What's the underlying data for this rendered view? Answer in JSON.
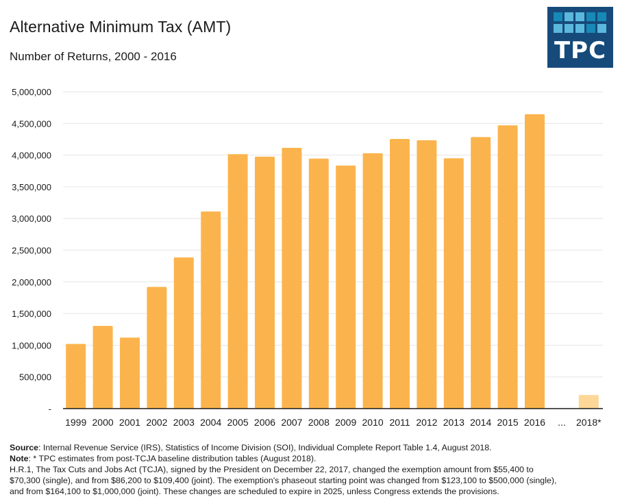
{
  "header": {
    "title": "Alternative Minimum Tax (AMT)",
    "subtitle": "Number of Returns, 2000 - 2016"
  },
  "logo": {
    "text": "TPC",
    "background": "#164a7a",
    "square_colors": [
      "#1789b6",
      "#5bb8dd",
      "#5bb8dd",
      "#1789b6",
      "#1789b6",
      "#5bb8dd",
      "#5bb8dd",
      "#5bb8dd",
      "#1789b6",
      "#5bb8dd"
    ]
  },
  "chart_data": {
    "type": "bar",
    "title": "Alternative Minimum Tax (AMT)",
    "subtitle": "Number of Returns, 2000 - 2016",
    "xlabel": "",
    "ylabel": "",
    "ylim": [
      0,
      5000000
    ],
    "yticks": [
      0,
      500000,
      1000000,
      1500000,
      2000000,
      2500000,
      3000000,
      3500000,
      4000000,
      4500000,
      5000000
    ],
    "ytick_labels": [
      "-",
      "500,000",
      "1,000,000",
      "1,500,000",
      "2,000,000",
      "2,500,000",
      "3,000,000",
      "3,500,000",
      "4,000,000",
      "4,500,000",
      "5,000,000"
    ],
    "grid": true,
    "legend": "none",
    "categories": [
      "1999",
      "2000",
      "2001",
      "2002",
      "2003",
      "2004",
      "2005",
      "2006",
      "2007",
      "2008",
      "2009",
      "2010",
      "2011",
      "2012",
      "2013",
      "2014",
      "2015",
      "2016",
      "...",
      "2018*"
    ],
    "values": [
      1020000,
      1305000,
      1120000,
      1920000,
      2385000,
      3110000,
      4015000,
      3975000,
      4115000,
      3945000,
      3835000,
      4030000,
      4255000,
      4235000,
      3950000,
      4285000,
      4470000,
      4645000,
      null,
      215000
    ],
    "bar_color": "#fbb44d",
    "estimate_color": "#fdd797",
    "estimate_categories": [
      "2018*"
    ]
  },
  "footnote": {
    "source_label": "Source",
    "source_text": ": Internal Revenue Service (IRS), Statistics of Income Division (SOI), Individual Complete Report Table 1.4, August 2018.",
    "note_label": "Note",
    "note_text": ": * TPC estimates from post-TCJA baseline distribution tables (August 2018).",
    "body_line1": "H.R.1, The Tax Cuts and Jobs Act (TCJA), signed by the President on December 22, 2017, changed the exemption amount from $55,400 to",
    "body_line2": "$70,300 (single), and from $86,200 to $109,400 (joint). The exemption's phaseout starting point was changed from $123,100 to $500,000 (single),",
    "body_line3": "and from $164,100 to $1,000,000 (joint). These changes are scheduled to expire in 2025, unless Congress extends the provisions."
  }
}
